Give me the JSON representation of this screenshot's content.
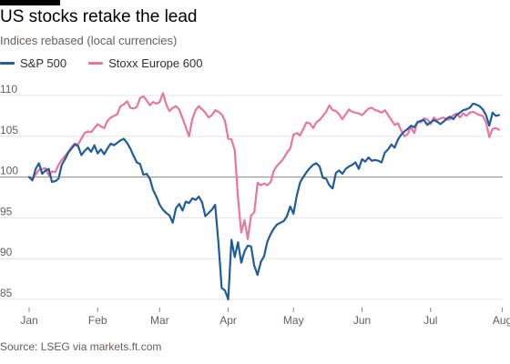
{
  "title": "US stocks retake the lead",
  "subtitle": "Indices rebased (local currencies)",
  "source": "Source: LSEG via markets.ft.com",
  "colors": {
    "sp500": "#1f5c99",
    "stoxx600": "#e8769f",
    "grid": "#e6e4e2",
    "baseline": "#8a8580"
  },
  "chart_data": {
    "type": "line",
    "legend_placement": "top-left",
    "grid": true,
    "ylim": [
      84,
      111
    ],
    "yticks": [
      85,
      90,
      95,
      100,
      105,
      110
    ],
    "xticks": [
      {
        "label": "Jan",
        "index": 0
      },
      {
        "label": "Feb",
        "index": 21
      },
      {
        "label": "Mar",
        "index": 40
      },
      {
        "label": "Apr",
        "index": 61
      },
      {
        "label": "May",
        "index": 81
      },
      {
        "label": "Jun",
        "index": 102
      },
      {
        "label": "Jul",
        "index": 123
      },
      {
        "label": "Aug",
        "index": 145
      }
    ],
    "series": [
      {
        "name": "S&P 500",
        "key": "sp500",
        "values": [
          100.0,
          99.6,
          101.0,
          101.7,
          100.4,
          100.8,
          101.0,
          99.4,
          99.5,
          99.8,
          101.5,
          102.2,
          103.0,
          103.5,
          104.0,
          103.8,
          102.7,
          103.2,
          103.6,
          103.1,
          103.9,
          102.9,
          103.4,
          102.8,
          103.5,
          104.1,
          103.9,
          104.2,
          104.5,
          104.7,
          104.2,
          103.5,
          102.6,
          101.8,
          101.6,
          100.3,
          100.4,
          99.8,
          98.4,
          97.6,
          96.6,
          96.0,
          95.6,
          95.3,
          94.4,
          96.2,
          96.7,
          95.9,
          97.0,
          96.8,
          97.4,
          97.2,
          97.6,
          96.9,
          95.2,
          95.6,
          96.0,
          96.6,
          92.0,
          86.4,
          86.1,
          85.0,
          92.3,
          90.2,
          92.0,
          89.5,
          90.9,
          91.6,
          91.5,
          89.1,
          88.0,
          89.6,
          90.3,
          92.1,
          93.0,
          93.7,
          94.2,
          94.4,
          94.6,
          95.2,
          96.4,
          95.5,
          97.7,
          99.3,
          100.0,
          100.6,
          101.1,
          101.5,
          101.7,
          101.3,
          99.9,
          99.8,
          99.0,
          98.6,
          100.5,
          100.8,
          100.4,
          101.0,
          101.3,
          101.5,
          101.8,
          101.0,
          102.2,
          101.9,
          102.4,
          102.0,
          102.1,
          102.0,
          101.8,
          103.0,
          103.4,
          104.0,
          103.6,
          104.6,
          105.2,
          105.6,
          105.9,
          106.3,
          106.1,
          106.7,
          106.9,
          107.0,
          106.4,
          106.7,
          107.0,
          106.8,
          106.5,
          106.8,
          107.2,
          107.4,
          107.1,
          107.6,
          107.9,
          108.2,
          108.3,
          108.5,
          109.0,
          108.9,
          108.7,
          108.3,
          107.6,
          106.3,
          107.9,
          107.5,
          107.6
        ]
      },
      {
        "name": "Stoxx Europe 600",
        "key": "stoxx600",
        "values": [
          100.0,
          99.7,
          100.3,
          100.9,
          101.0,
          101.1,
          100.2,
          100.7,
          100.6,
          101.5,
          102.1,
          102.6,
          103.1,
          103.7,
          104.1,
          104.0,
          104.7,
          105.4,
          105.6,
          105.5,
          106.0,
          106.5,
          106.2,
          106.0,
          106.9,
          107.3,
          107.5,
          107.7,
          108.7,
          108.9,
          109.3,
          108.5,
          108.4,
          108.6,
          109.7,
          109.9,
          109.4,
          108.8,
          109.2,
          109.0,
          109.2,
          110.3,
          108.9,
          108.1,
          108.5,
          108.7,
          108.3,
          107.2,
          106.1,
          105.0,
          107.1,
          108.2,
          108.7,
          108.3,
          107.9,
          107.3,
          107.6,
          108.2,
          108.0,
          107.7,
          106.9,
          104.7,
          104.6,
          103.3,
          97.4,
          93.2,
          94.7,
          92.4,
          95.3,
          95.7,
          99.3,
          99.0,
          99.2,
          99.0,
          99.4,
          100.8,
          101.4,
          101.8,
          102.3,
          103.0,
          103.5,
          105.2,
          105.4,
          105.1,
          105.9,
          106.7,
          106.6,
          106.0,
          106.7,
          107.0,
          107.5,
          108.0,
          108.8,
          108.2,
          108.1,
          107.7,
          107.1,
          107.7,
          108.3,
          108.0,
          107.9,
          107.8,
          107.6,
          108.0,
          108.4,
          108.5,
          108.2,
          108.1,
          107.9,
          108.2,
          107.6,
          107.0,
          106.4,
          106.6,
          105.7,
          105.0,
          105.3,
          106.1,
          105.4,
          106.8,
          106.7,
          107.2,
          107.1,
          106.5,
          107.3,
          107.0,
          107.2,
          107.3,
          107.0,
          107.1,
          107.6,
          107.8,
          107.3,
          107.8,
          107.5,
          107.9,
          108.0,
          107.8,
          107.6,
          107.5,
          106.7,
          104.9,
          105.9,
          106.0,
          105.8
        ]
      }
    ]
  }
}
